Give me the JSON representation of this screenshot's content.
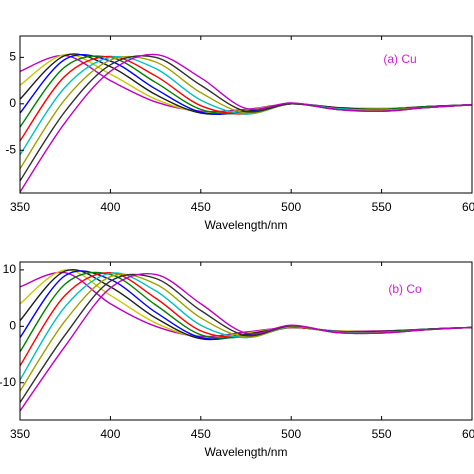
{
  "chart_data": [
    {
      "type": "line",
      "xlabel": "Wavelength/nm",
      "annotation": {
        "text": "(a) Cu",
        "color": "#d01fd0"
      },
      "x": [
        350,
        375,
        400,
        425,
        450,
        475,
        500,
        525,
        550,
        575,
        600
      ],
      "xlim": [
        350,
        600
      ],
      "xticks": [
        350,
        400,
        450,
        500,
        550,
        600
      ],
      "ylim": [
        -9.6,
        7.3
      ],
      "yticks": [
        5,
        0,
        -5
      ],
      "series": [
        {
          "color": "#c000c0",
          "values": [
            3.5,
            5.2,
            2.5,
            0.2,
            -0.8,
            -0.6,
            0,
            -0.4,
            -0.5,
            -0.3,
            -0.1
          ]
        },
        {
          "color": "#c8c800",
          "values": [
            2,
            5.3,
            3.2,
            0.5,
            -0.9,
            -0.7,
            0,
            -0.4,
            -0.5,
            -0.3,
            -0.1
          ]
        },
        {
          "color": "#202020",
          "values": [
            0.5,
            5.2,
            4,
            1,
            -1,
            -0.8,
            0,
            -0.4,
            -0.6,
            -0.3,
            -0.1
          ]
        },
        {
          "color": "#0000ff",
          "values": [
            -1,
            4.8,
            4.6,
            1.6,
            -0.9,
            -0.9,
            0,
            -0.5,
            -0.6,
            -0.3,
            -0.1
          ]
        },
        {
          "color": "#008000",
          "values": [
            -2.5,
            4,
            5,
            2.3,
            -0.6,
            -1,
            0,
            -0.5,
            -0.6,
            -0.3,
            -0.1
          ]
        },
        {
          "color": "#ff0000",
          "values": [
            -4,
            3,
            5.1,
            3,
            -0.2,
            -1.1,
            0,
            -0.5,
            -0.7,
            -0.4,
            -0.1
          ]
        },
        {
          "color": "#00c0c0",
          "values": [
            -5.5,
            1.8,
            5,
            3.8,
            0.4,
            -1.1,
            0,
            -0.5,
            -0.7,
            -0.4,
            -0.1
          ]
        },
        {
          "color": "#a0a000",
          "values": [
            -7,
            0.5,
            4.7,
            4.5,
            1.2,
            -1,
            0,
            -0.6,
            -0.7,
            -0.4,
            -0.1
          ]
        },
        {
          "color": "#303030",
          "values": [
            -8.3,
            -0.8,
            4.2,
            5,
            2,
            -0.8,
            0,
            -0.6,
            -0.8,
            -0.4,
            -0.1
          ]
        },
        {
          "color": "#c000c0",
          "values": [
            -9.5,
            -2,
            3.5,
            5.3,
            2.8,
            -0.5,
            0.1,
            -0.6,
            -0.8,
            -0.4,
            -0.1
          ]
        }
      ]
    },
    {
      "type": "line",
      "xlabel": "Wavelength/nm",
      "annotation": {
        "text": "(b) Co",
        "color": "#d01fd0"
      },
      "x": [
        350,
        375,
        400,
        425,
        450,
        475,
        500,
        525,
        550,
        575,
        600
      ],
      "xlim": [
        350,
        600
      ],
      "xticks": [
        350,
        400,
        450,
        500,
        550,
        600
      ],
      "ylim": [
        -16.6,
        11.4
      ],
      "yticks": [
        10,
        0,
        -10
      ],
      "series": [
        {
          "color": "#c000c0",
          "values": [
            7,
            9.5,
            4,
            0,
            -1.8,
            -1,
            -0.2,
            -0.8,
            -0.8,
            -0.5,
            -0.2
          ]
        },
        {
          "color": "#c8c800",
          "values": [
            4,
            10,
            5.5,
            0.6,
            -2,
            -1.2,
            -0.2,
            -0.8,
            -0.9,
            -0.5,
            -0.2
          ]
        },
        {
          "color": "#202020",
          "values": [
            1,
            9.8,
            7,
            1.5,
            -2.2,
            -1.4,
            -0.2,
            -0.9,
            -0.9,
            -0.5,
            -0.2
          ]
        },
        {
          "color": "#0000ff",
          "values": [
            -2,
            9,
            8.3,
            2.5,
            -2,
            -1.6,
            -0.2,
            -0.9,
            -1,
            -0.5,
            -0.2
          ]
        },
        {
          "color": "#008000",
          "values": [
            -4.5,
            7.5,
            9.2,
            3.8,
            -1.5,
            -1.8,
            -0.2,
            -1,
            -1,
            -0.5,
            -0.2
          ]
        },
        {
          "color": "#ff0000",
          "values": [
            -7,
            5.5,
            9.5,
            5,
            -0.8,
            -1.9,
            -0.2,
            -1,
            -1.1,
            -0.6,
            -0.2
          ]
        },
        {
          "color": "#00c0c0",
          "values": [
            -9.5,
            3.5,
            9.4,
            6.3,
            0.2,
            -2,
            -0.1,
            -1,
            -1.1,
            -0.6,
            -0.2
          ]
        },
        {
          "color": "#a0a000",
          "values": [
            -11.5,
            1,
            8.8,
            7.5,
            1.5,
            -1.9,
            0,
            -1.1,
            -1.1,
            -0.6,
            -0.2
          ]
        },
        {
          "color": "#303030",
          "values": [
            -13.5,
            -1.5,
            8,
            8.5,
            2.8,
            -1.6,
            0.1,
            -1.1,
            -1.2,
            -0.6,
            -0.2
          ]
        },
        {
          "color": "#c000c0",
          "values": [
            -15,
            -3.5,
            6.8,
            9.2,
            4,
            -1.2,
            0.2,
            -1.1,
            -1.2,
            -0.6,
            -0.2
          ]
        }
      ]
    }
  ]
}
